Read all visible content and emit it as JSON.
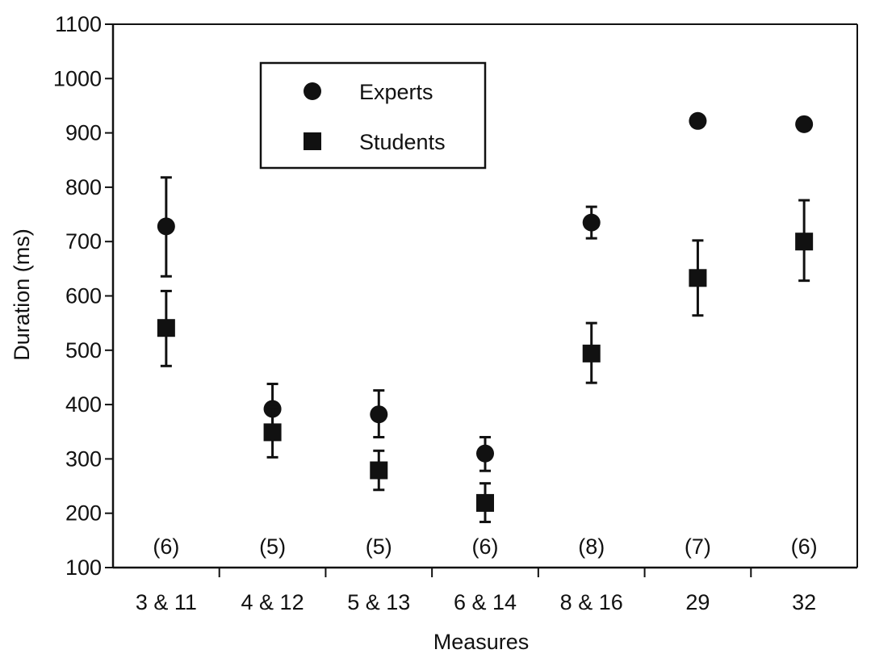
{
  "chart_data": {
    "type": "scatter",
    "title": "",
    "xlabel": "Measures",
    "ylabel": "Duration (ms)",
    "ylim": [
      100,
      1100
    ],
    "yticks": [
      100,
      200,
      300,
      400,
      500,
      600,
      700,
      800,
      900,
      1000,
      1100
    ],
    "categories": [
      "3 & 11",
      "4 & 12",
      "5 & 13",
      "6 & 14",
      "8 & 16",
      "29",
      "32"
    ],
    "counts": [
      "(6)",
      "(5)",
      "(5)",
      "(6)",
      "(8)",
      "(7)",
      "(6)"
    ],
    "legend_position": "top-left",
    "grid": false,
    "series": [
      {
        "name": "Experts",
        "marker": "circle",
        "values": [
          728,
          392,
          382,
          310,
          735,
          922,
          916
        ],
        "error_low": [
          636,
          348,
          340,
          278,
          706,
          null,
          null
        ],
        "error_high": [
          818,
          438,
          426,
          340,
          764,
          null,
          null
        ]
      },
      {
        "name": "Students",
        "marker": "square",
        "values": [
          541,
          349,
          279,
          219,
          494,
          633,
          700
        ],
        "error_low": [
          471,
          303,
          243,
          184,
          440,
          564,
          628
        ],
        "error_high": [
          609,
          396,
          315,
          255,
          550,
          702,
          776
        ]
      }
    ]
  }
}
